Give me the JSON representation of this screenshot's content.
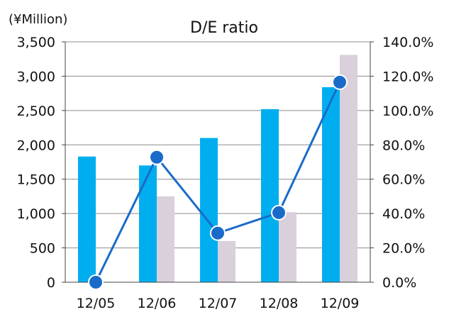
{
  "chart_data": {
    "type": "bar",
    "title": "D/E ratio",
    "unit_label": "(¥Million)",
    "categories": [
      "12/05",
      "12/06",
      "12/07",
      "12/08",
      "12/09"
    ],
    "left_axis": {
      "ylim": [
        0,
        3500
      ],
      "ticks": [
        0,
        500,
        1000,
        1500,
        2000,
        2500,
        3000,
        3500
      ],
      "tick_labels": [
        "0",
        "500",
        "1,000",
        "1,500",
        "2,000",
        "2,500",
        "3,000",
        "3,500"
      ]
    },
    "right_axis": {
      "ylim": [
        0,
        140
      ],
      "ticks": [
        0,
        20,
        40,
        60,
        80,
        100,
        120,
        140
      ],
      "tick_labels": [
        "0.0%",
        "20.0%",
        "40.0%",
        "60.0%",
        "80.0%",
        "100.0%",
        "120.0%",
        "140.0%"
      ]
    },
    "grid": "horizontal",
    "series": [
      {
        "type": "bar",
        "axis": "left",
        "color": "#00aeef",
        "values": [
          1830,
          1700,
          2100,
          2520,
          2840
        ]
      },
      {
        "type": "bar",
        "axis": "left",
        "color": "#d9d0dc",
        "values": [
          0,
          1250,
          600,
          1020,
          3310
        ]
      },
      {
        "type": "line",
        "axis": "right",
        "color": "#1a6bc9",
        "values": [
          0,
          72.8,
          28.6,
          40.5,
          116.5
        ]
      }
    ]
  }
}
